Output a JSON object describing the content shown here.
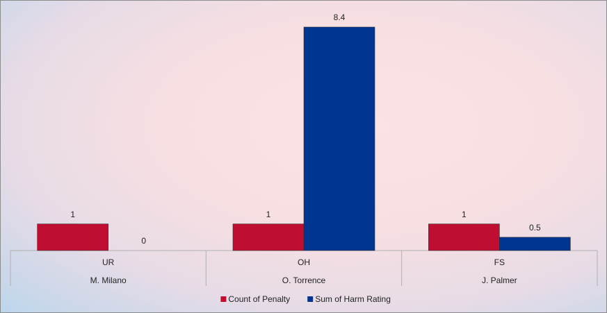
{
  "chart_data": {
    "type": "bar",
    "categories": [
      "UR",
      "OH",
      "FS"
    ],
    "subcategories": [
      "M. Milano",
      "O. Torrence",
      "J. Palmer"
    ],
    "series": [
      {
        "name": "Count of Penalty",
        "color": "#c00d32",
        "values": [
          1,
          1,
          1
        ]
      },
      {
        "name": "Sum of Harm Rating",
        "color": "#003591",
        "values": [
          0,
          8.4,
          0.5
        ]
      }
    ],
    "legend": "bottom"
  }
}
